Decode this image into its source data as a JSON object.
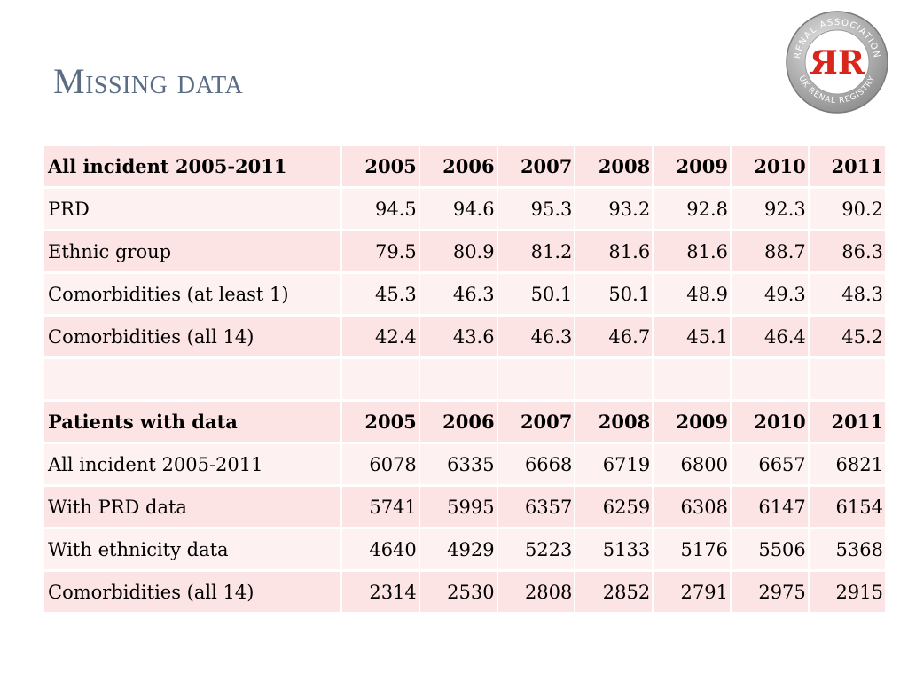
{
  "slide": {
    "title": "Missing data",
    "logo": {
      "ring_text_top": "RENAL ASSOCIATION",
      "ring_text_bottom": "UK RENAL REGISTRY",
      "monogram": "ЯR",
      "colors": {
        "ring": "#9a9a9a",
        "inner": "#ffffff",
        "letters": "#d9261c"
      }
    }
  },
  "table1": {
    "header": {
      "label": "All incident 2005-2011",
      "years": [
        "2005",
        "2006",
        "2007",
        "2008",
        "2009",
        "2010",
        "2011"
      ]
    },
    "rows": [
      {
        "label": "PRD",
        "values": [
          "94.5",
          "94.6",
          "95.3",
          "93.2",
          "92.8",
          "92.3",
          "90.2"
        ]
      },
      {
        "label": "Ethnic group",
        "values": [
          "79.5",
          "80.9",
          "81.2",
          "81.6",
          "81.6",
          "88.7",
          "86.3"
        ]
      },
      {
        "label": "Comorbidities (at least 1)",
        "values": [
          "45.3",
          "46.3",
          "50.1",
          "50.1",
          "48.9",
          "49.3",
          "48.3"
        ]
      },
      {
        "label": "Comorbidities (all 14)",
        "values": [
          "42.4",
          "43.6",
          "46.3",
          "46.7",
          "45.1",
          "46.4",
          "45.2"
        ]
      }
    ]
  },
  "table2": {
    "header": {
      "label": "Patients with data",
      "years": [
        "2005",
        "2006",
        "2007",
        "2008",
        "2009",
        "2010",
        "2011"
      ]
    },
    "rows": [
      {
        "label": "All incident 2005-2011",
        "values": [
          "6078",
          "6335",
          "6668",
          "6719",
          "6800",
          "6657",
          "6821"
        ]
      },
      {
        "label": "With PRD data",
        "values": [
          "5741",
          "5995",
          "6357",
          "6259",
          "6308",
          "6147",
          "6154"
        ]
      },
      {
        "label": "With ethnicity data",
        "values": [
          "4640",
          "4929",
          "5223",
          "5133",
          "5176",
          "5506",
          "5368"
        ]
      },
      {
        "label": "Comorbidities (all 14)",
        "values": [
          "2314",
          "2530",
          "2808",
          "2852",
          "2791",
          "2975",
          "2915"
        ]
      }
    ]
  },
  "colors": {
    "title": "#5a6d85",
    "row_odd": "#fde4e4",
    "row_even": "#fef1f1"
  }
}
